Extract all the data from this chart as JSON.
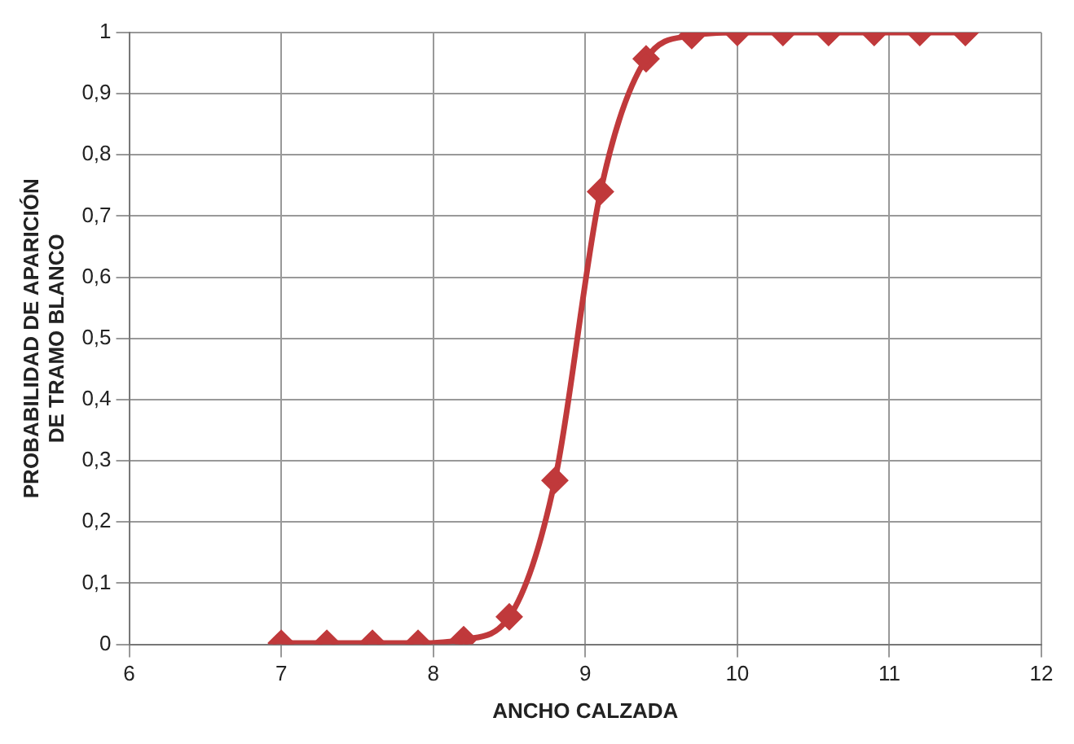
{
  "chart_data": {
    "type": "line",
    "xlabel": "ANCHO CALZADA",
    "ylabel": "PROBABILIDAD DE APARICIÓN DE TRAMO BLANCO",
    "x": [
      7,
      7.3,
      7.6,
      7.9,
      8.2,
      8.5,
      8.8,
      9.1,
      9.4,
      9.7,
      10,
      10.3,
      10.6,
      10.9,
      11.2,
      11.5
    ],
    "series": [
      {
        "color": "#c0393b",
        "values": [
          0.002,
          0.002,
          0.002,
          0.002,
          0.008,
          0.045,
          0.268,
          0.74,
          0.957,
          0.995,
          1,
          1,
          1,
          1,
          1,
          1
        ]
      }
    ],
    "xlim": [
      6,
      12
    ],
    "xticks": [
      6,
      7,
      8,
      9,
      10,
      11,
      12
    ],
    "ylim": [
      0,
      1
    ],
    "yticks": [
      0,
      {
        "value": 0.1,
        "label": "0,1"
      },
      {
        "value": 0.2,
        "label": "0,2"
      },
      {
        "value": 0.3,
        "label": "0,3"
      },
      {
        "value": 0.4,
        "label": "0,4"
      },
      {
        "value": 0.5,
        "label": "0,5"
      },
      {
        "value": 0.6,
        "label": "0,6"
      },
      {
        "value": 0.7,
        "label": "0,7"
      },
      {
        "value": 0.8,
        "label": "0,8"
      },
      {
        "value": 0.9,
        "label": "0,9"
      },
      1
    ],
    "grid": true,
    "legend": false,
    "marker": "diamond",
    "line_style": "solid"
  }
}
